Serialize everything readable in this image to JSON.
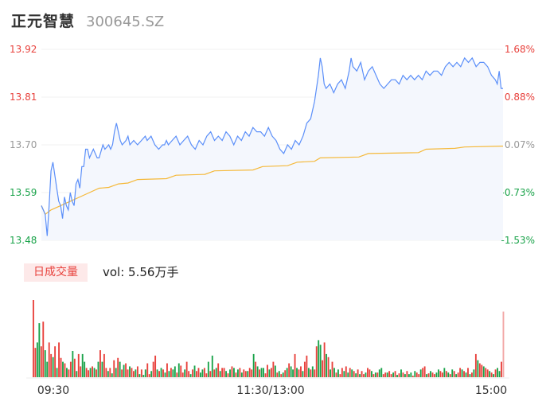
{
  "header": {
    "stock_name": "正元智慧",
    "stock_code": "300645.SZ"
  },
  "volume_panel": {
    "tab_label": "日成交量",
    "vol_label": "vol: 5.56万手"
  },
  "colors": {
    "price_line": "#5b8ff9",
    "avg_line": "#f5b93a",
    "up": "#e8413c",
    "down": "#1aa34a",
    "flat": "#999999",
    "area_fill": "#f4f7fd"
  },
  "chart_data": {
    "type": "line",
    "prev_close": 13.69,
    "price_axis_labels": [
      "13.92",
      "13.81",
      "13.70",
      "13.59",
      "13.48"
    ],
    "pct_axis_labels": [
      "1.68%",
      "0.88%",
      "0.07%",
      "-0.73%",
      "-1.53%"
    ],
    "ylim": [
      13.48,
      13.92
    ],
    "x_tick_labels": [
      "09:30",
      "11:30/13:00",
      "15:00"
    ],
    "price_series": [
      [
        0,
        13.56
      ],
      [
        2,
        13.54
      ],
      [
        3,
        13.49
      ],
      [
        4,
        13.56
      ],
      [
        5,
        13.64
      ],
      [
        6,
        13.66
      ],
      [
        7,
        13.63
      ],
      [
        8,
        13.6
      ],
      [
        9,
        13.57
      ],
      [
        10,
        13.56
      ],
      [
        11,
        13.53
      ],
      [
        12,
        13.58
      ],
      [
        13,
        13.56
      ],
      [
        14,
        13.55
      ],
      [
        15,
        13.59
      ],
      [
        16,
        13.57
      ],
      [
        17,
        13.56
      ],
      [
        18,
        13.61
      ],
      [
        19,
        13.62
      ],
      [
        20,
        13.6
      ],
      [
        21,
        13.65
      ],
      [
        22,
        13.65
      ],
      [
        23,
        13.69
      ],
      [
        24,
        13.69
      ],
      [
        25,
        13.67
      ],
      [
        26,
        13.68
      ],
      [
        27,
        13.69
      ],
      [
        28,
        13.68
      ],
      [
        29,
        13.67
      ],
      [
        30,
        13.67
      ],
      [
        32,
        13.7
      ],
      [
        33,
        13.69
      ],
      [
        35,
        13.7
      ],
      [
        36,
        13.69
      ],
      [
        37,
        13.7
      ],
      [
        38,
        13.73
      ],
      [
        39,
        13.75
      ],
      [
        40,
        13.73
      ],
      [
        41,
        13.71
      ],
      [
        42,
        13.7
      ],
      [
        44,
        13.71
      ],
      [
        45,
        13.72
      ],
      [
        46,
        13.7
      ],
      [
        48,
        13.71
      ],
      [
        50,
        13.7
      ],
      [
        52,
        13.71
      ],
      [
        54,
        13.72
      ],
      [
        55,
        13.71
      ],
      [
        57,
        13.72
      ],
      [
        59,
        13.7
      ],
      [
        61,
        13.69
      ],
      [
        63,
        13.7
      ],
      [
        64,
        13.7
      ],
      [
        65,
        13.71
      ],
      [
        66,
        13.7
      ],
      [
        68,
        13.71
      ],
      [
        70,
        13.72
      ],
      [
        72,
        13.7
      ],
      [
        74,
        13.71
      ],
      [
        76,
        13.72
      ],
      [
        78,
        13.7
      ],
      [
        80,
        13.69
      ],
      [
        82,
        13.71
      ],
      [
        84,
        13.7
      ],
      [
        86,
        13.72
      ],
      [
        88,
        13.73
      ],
      [
        90,
        13.71
      ],
      [
        92,
        13.72
      ],
      [
        94,
        13.71
      ],
      [
        96,
        13.73
      ],
      [
        98,
        13.72
      ],
      [
        100,
        13.7
      ],
      [
        102,
        13.72
      ],
      [
        104,
        13.71
      ],
      [
        106,
        13.73
      ],
      [
        108,
        13.72
      ],
      [
        110,
        13.74
      ],
      [
        112,
        13.73
      ],
      [
        114,
        13.73
      ],
      [
        116,
        13.72
      ],
      [
        118,
        13.74
      ],
      [
        120,
        13.72
      ],
      [
        122,
        13.71
      ],
      [
        124,
        13.69
      ],
      [
        126,
        13.68
      ],
      [
        128,
        13.7
      ],
      [
        130,
        13.69
      ],
      [
        132,
        13.71
      ],
      [
        134,
        13.7
      ],
      [
        136,
        13.72
      ],
      [
        138,
        13.75
      ],
      [
        140,
        13.76
      ],
      [
        142,
        13.8
      ],
      [
        144,
        13.86
      ],
      [
        145,
        13.9
      ],
      [
        146,
        13.88
      ],
      [
        147,
        13.84
      ],
      [
        148,
        13.83
      ],
      [
        150,
        13.84
      ],
      [
        152,
        13.82
      ],
      [
        154,
        13.84
      ],
      [
        156,
        13.85
      ],
      [
        158,
        13.83
      ],
      [
        160,
        13.87
      ],
      [
        161,
        13.9
      ],
      [
        162,
        13.88
      ],
      [
        164,
        13.87
      ],
      [
        166,
        13.89
      ],
      [
        168,
        13.85
      ],
      [
        170,
        13.87
      ],
      [
        172,
        13.88
      ],
      [
        174,
        13.86
      ],
      [
        176,
        13.84
      ],
      [
        178,
        13.83
      ],
      [
        180,
        13.84
      ],
      [
        182,
        13.85
      ],
      [
        184,
        13.85
      ],
      [
        186,
        13.84
      ],
      [
        188,
        13.86
      ],
      [
        190,
        13.85
      ],
      [
        192,
        13.86
      ],
      [
        194,
        13.85
      ],
      [
        196,
        13.86
      ],
      [
        198,
        13.85
      ],
      [
        200,
        13.87
      ],
      [
        202,
        13.86
      ],
      [
        204,
        13.87
      ],
      [
        206,
        13.87
      ],
      [
        208,
        13.86
      ],
      [
        210,
        13.88
      ],
      [
        212,
        13.89
      ],
      [
        214,
        13.88
      ],
      [
        216,
        13.89
      ],
      [
        218,
        13.88
      ],
      [
        220,
        13.9
      ],
      [
        222,
        13.89
      ],
      [
        224,
        13.9
      ],
      [
        226,
        13.88
      ],
      [
        228,
        13.89
      ],
      [
        230,
        13.89
      ],
      [
        232,
        13.88
      ],
      [
        234,
        13.86
      ],
      [
        236,
        13.85
      ],
      [
        237,
        13.84
      ],
      [
        238,
        13.87
      ],
      [
        239,
        13.83
      ],
      [
        240,
        13.83
      ]
    ],
    "avg_series": [
      [
        0,
        13.56
      ],
      [
        1,
        13.55
      ],
      [
        2,
        13.54
      ],
      [
        5,
        13.55
      ],
      [
        10,
        13.56
      ],
      [
        15,
        13.57
      ],
      [
        20,
        13.58
      ],
      [
        25,
        13.59
      ],
      [
        30,
        13.6
      ],
      [
        35,
        13.602
      ],
      [
        40,
        13.61
      ],
      [
        45,
        13.612
      ],
      [
        50,
        13.62
      ],
      [
        65,
        13.622
      ],
      [
        70,
        13.63
      ],
      [
        85,
        13.632
      ],
      [
        90,
        13.64
      ],
      [
        110,
        13.642
      ],
      [
        115,
        13.65
      ],
      [
        128,
        13.652
      ],
      [
        133,
        13.66
      ],
      [
        142,
        13.662
      ],
      [
        145,
        13.67
      ],
      [
        165,
        13.672
      ],
      [
        170,
        13.68
      ],
      [
        196,
        13.682
      ],
      [
        200,
        13.69
      ],
      [
        215,
        13.692
      ],
      [
        220,
        13.695
      ],
      [
        240,
        13.697
      ]
    ],
    "volume_scale_max": 100,
    "volume_colors": [
      "up",
      "up",
      "down",
      "down",
      "up",
      "up",
      "down",
      "down",
      "up",
      "up",
      "down",
      "up",
      "down",
      "up",
      "up",
      "down",
      "up",
      "down",
      "up",
      "up",
      "down",
      "up",
      "down",
      "up",
      "up",
      "down",
      "down",
      "up",
      "up",
      "down",
      "up",
      "down",
      "up",
      "down",
      "up",
      "down",
      "up",
      "up",
      "down",
      "up",
      "down",
      "up",
      "down",
      "up",
      "down",
      "up",
      "down",
      "up",
      "up",
      "down",
      "up",
      "up",
      "down",
      "up",
      "down",
      "up",
      "down",
      "down",
      "up",
      "up",
      "down",
      "up",
      "up",
      "down",
      "up",
      "down",
      "up",
      "down",
      "up",
      "down",
      "up",
      "down",
      "down",
      "up",
      "down",
      "up",
      "up",
      "down",
      "up",
      "up",
      "down",
      "up",
      "down",
      "up",
      "up",
      "down",
      "down",
      "up",
      "up",
      "down",
      "up",
      "down",
      "up",
      "down",
      "up",
      "down",
      "up",
      "up",
      "down",
      "up",
      "down",
      "up",
      "down",
      "up",
      "down",
      "up",
      "down",
      "up",
      "up",
      "down",
      "up",
      "up",
      "down",
      "up",
      "down",
      "up",
      "down",
      "down",
      "up",
      "up",
      "down",
      "up",
      "up",
      "down",
      "up",
      "down",
      "up",
      "down",
      "up",
      "down",
      "up",
      "down",
      "down",
      "up",
      "down",
      "up",
      "up",
      "down",
      "up",
      "up",
      "down",
      "up",
      "down",
      "up",
      "up",
      "down",
      "down",
      "up",
      "up",
      "down",
      "up",
      "down",
      "up",
      "down",
      "up",
      "down",
      "up",
      "up",
      "down",
      "up",
      "down",
      "up",
      "down",
      "up",
      "down",
      "up",
      "down",
      "up",
      "up",
      "down",
      "up",
      "up",
      "down",
      "up",
      "down",
      "up",
      "down",
      "down",
      "up",
      "up",
      "down",
      "up",
      "up",
      "down",
      "up",
      "down",
      "up",
      "down",
      "up",
      "down",
      "up",
      "down",
      "down",
      "up",
      "down",
      "up",
      "up",
      "down",
      "up",
      "up",
      "down",
      "up",
      "down",
      "up",
      "up",
      "down",
      "down",
      "up",
      "up",
      "down",
      "up",
      "down",
      "up",
      "down",
      "up",
      "down",
      "up",
      "up",
      "down",
      "up",
      "down",
      "up",
      "down",
      "up",
      "down",
      "up",
      "down",
      "up",
      "up",
      "down",
      "up",
      "up",
      "down",
      "up",
      "down",
      "up",
      "down",
      "down",
      "up",
      "up"
    ],
    "volumes": [
      100,
      38,
      45,
      70,
      40,
      72,
      35,
      20,
      45,
      30,
      26,
      40,
      12,
      45,
      25,
      20,
      18,
      12,
      10,
      20,
      34,
      24,
      8,
      30,
      14,
      30,
      20,
      12,
      9,
      12,
      14,
      12,
      10,
      20,
      35,
      20,
      30,
      12,
      8,
      12,
      5,
      22,
      12,
      25,
      20,
      10,
      16,
      18,
      10,
      14,
      12,
      8,
      10,
      14,
      4,
      10,
      3,
      10,
      18,
      4,
      8,
      20,
      28,
      10,
      8,
      12,
      10,
      6,
      18,
      8,
      12,
      10,
      14,
      6,
      18,
      15,
      6,
      10,
      20,
      8,
      4,
      10,
      15,
      8,
      12,
      6,
      10,
      12,
      5,
      20,
      8,
      28,
      10,
      12,
      18,
      8,
      12,
      12,
      8,
      5,
      10,
      14,
      12,
      6,
      10,
      12,
      6,
      10,
      8,
      8,
      12,
      10,
      30,
      20,
      14,
      10,
      12,
      12,
      5,
      16,
      10,
      12,
      20,
      15,
      6,
      8,
      4,
      6,
      9,
      12,
      18,
      14,
      10,
      30,
      12,
      10,
      14,
      8,
      20,
      28,
      12,
      10,
      14,
      10,
      40,
      48,
      42,
      22,
      45,
      30,
      26,
      10,
      20,
      12,
      6,
      10,
      4,
      12,
      8,
      14,
      6,
      12,
      10,
      8,
      5,
      10,
      4,
      8,
      4,
      6,
      12,
      10,
      8,
      4,
      6,
      6,
      10,
      12,
      4,
      6,
      6,
      8,
      4,
      6,
      8,
      3,
      5,
      10,
      6,
      4,
      8,
      4,
      6,
      2,
      8,
      6,
      4,
      10,
      12,
      14,
      4,
      5,
      8,
      6,
      4,
      6,
      10,
      8,
      6,
      12,
      8,
      6,
      4,
      10,
      8,
      4,
      6,
      12,
      10,
      8,
      6,
      12,
      4,
      6,
      10,
      30,
      22,
      18,
      16,
      14,
      12,
      10,
      8,
      6,
      4,
      10,
      12,
      8,
      20,
      85
    ]
  }
}
